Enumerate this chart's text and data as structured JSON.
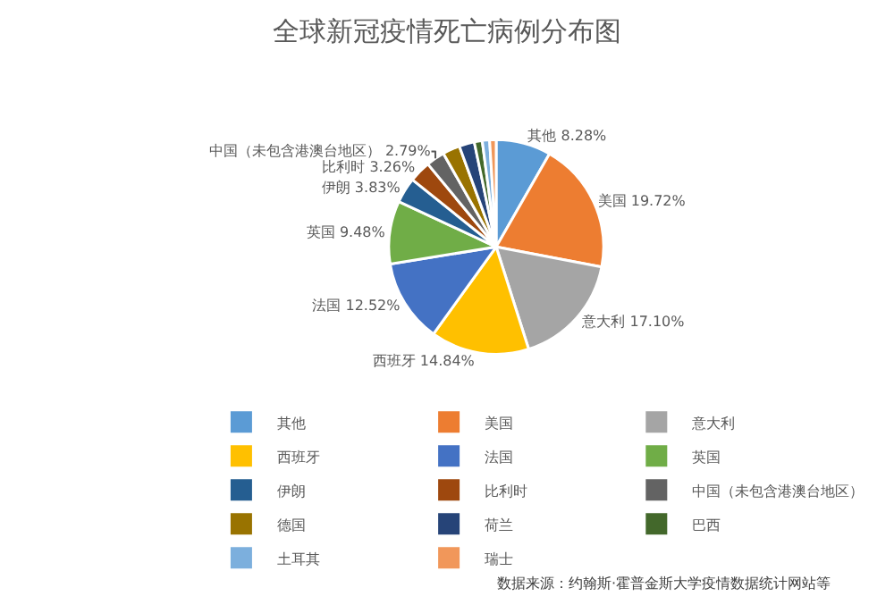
{
  "chart_data": {
    "type": "pie",
    "title": "全球新冠疫情死亡病例分布图",
    "categories": [
      "其他",
      "美国",
      "意大利",
      "西班牙",
      "法国",
      "英国",
      "伊朗",
      "比利时",
      "中国（未包含港澳台地区）",
      "德国",
      "荷兰",
      "巴西",
      "土耳其",
      "瑞士"
    ],
    "values": [
      8.28,
      19.72,
      17.1,
      14.84,
      12.52,
      9.48,
      3.83,
      3.26,
      2.79,
      2.6,
      2.3,
      1.2,
      1.1,
      0.98
    ],
    "value_labels": [
      "8.28%",
      "19.72%",
      "17.10%",
      "14.84%",
      "12.52%",
      "9.48%",
      "3.83%",
      "3.26%",
      "2.79%",
      null,
      null,
      null,
      null,
      null
    ],
    "colors": [
      "#5b9bd5",
      "#ed7d31",
      "#a5a5a5",
      "#ffc000",
      "#4472c4",
      "#70ad47",
      "#255e91",
      "#9e480e",
      "#636363",
      "#997300",
      "#264478",
      "#43682b",
      "#7cafdd",
      "#f1975a"
    ],
    "legend": "bottom",
    "annotations": [
      "数据来源：约翰斯·霍普金斯大学疫情数据统计网站等"
    ]
  }
}
